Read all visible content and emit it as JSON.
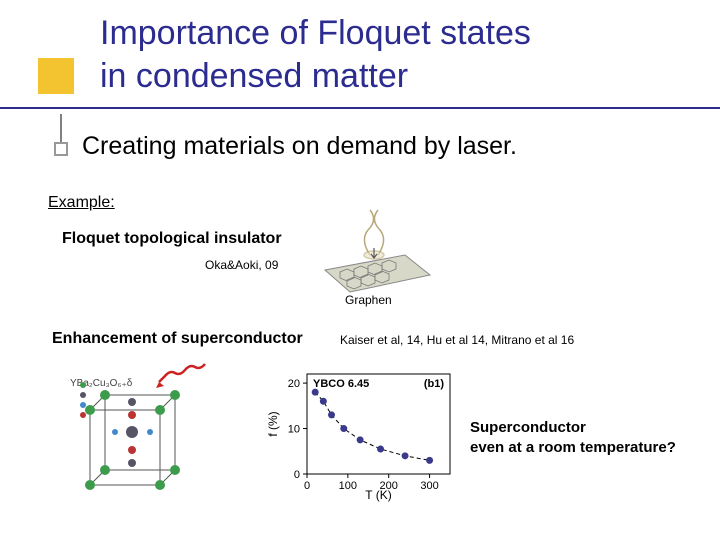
{
  "title": {
    "line1": "Importance of Floquet states",
    "line2": "in condensed matter"
  },
  "subtitle": "Creating materials on demand by laser.",
  "example_label": "Example:",
  "topological": {
    "label": "Floquet topological insulator",
    "ref": "Oka&Aoki, 09",
    "graphen_label": "Graphen"
  },
  "enhancement": {
    "label": "Enhancement of superconductor",
    "ref": "Kaiser et al, 14, Hu et al 14, Mitrano et al 16"
  },
  "crystal": {
    "formula": "YBa₂Cu₃O₆₊δ"
  },
  "chart": {
    "type": "scatter-line",
    "title": "YBCO 6.45",
    "panel_label": "(b1)",
    "xlabel": "T (K)",
    "ylabel": "f (%)",
    "xlim": [
      0,
      350
    ],
    "xticks": [
      0,
      100,
      200,
      300
    ],
    "ylim": [
      0,
      22
    ],
    "yticks": [
      0,
      10,
      20
    ],
    "points_x": [
      20,
      40,
      60,
      90,
      130,
      180,
      240,
      300
    ],
    "points_y": [
      18,
      16,
      13,
      10,
      7.5,
      5.5,
      4,
      3
    ],
    "point_color": "#3a3a8c",
    "line_dash": true,
    "line_color": "#000000",
    "axis_color": "#000000",
    "background_color": "#ffffff",
    "tick_fontsize": 11,
    "label_fontsize": 12
  },
  "conclusion": {
    "line1": "Superconductor",
    "line2": "even at a room temperature?"
  },
  "colors": {
    "title_color": "#2b2b90",
    "accent_yellow": "#f4c430",
    "wavy_red": "#cc2222"
  }
}
